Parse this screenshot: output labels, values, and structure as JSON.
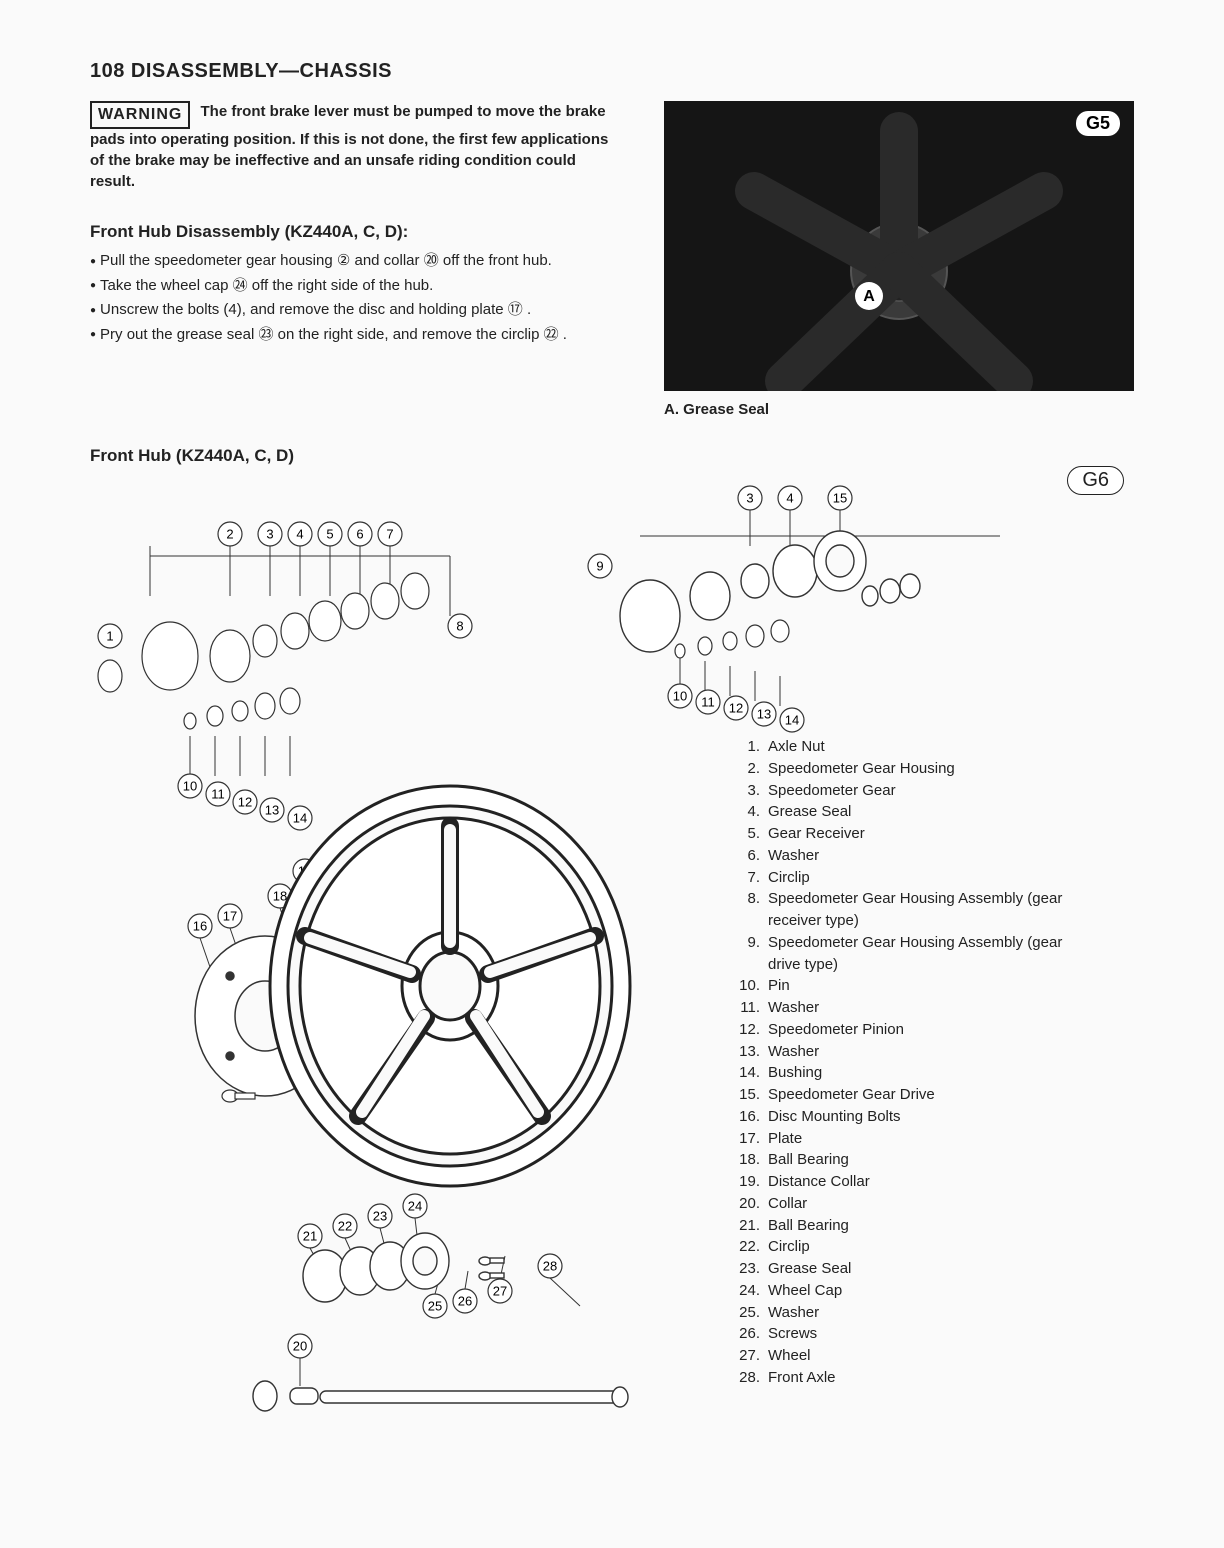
{
  "page_header": "108  DISASSEMBLY—CHASSIS",
  "warning": {
    "label": "WARNING",
    "text": "The front brake lever must be pumped to move the brake pads into operating position.  If this is not done, the first few applications of the brake may be ineffective and an unsafe riding condition could result."
  },
  "disassembly": {
    "title": "Front Hub Disassembly (KZ440A, C, D):",
    "steps": [
      "Pull the speedometer gear housing ② and collar ⑳ off the front hub.",
      "Take the wheel cap ㉔ off the right side of the hub.",
      "Unscrew the bolts (4), and remove the disc and holding plate ⑰ .",
      "Pry out the grease seal ㉓ on the right side, and remove the circlip ㉒ ."
    ]
  },
  "photo_g5": {
    "badge": "G5",
    "marker": "A",
    "caption": "A. Grease Seal"
  },
  "diagram": {
    "title": "Front Hub (KZ440A, C, D)",
    "g6_badge": "G6",
    "callouts_upper": [
      1,
      2,
      3,
      4,
      5,
      6,
      7,
      8,
      9,
      10,
      11,
      12,
      13,
      14,
      15,
      16,
      17,
      18,
      19
    ],
    "callouts_lower": [
      20,
      21,
      22,
      23,
      24,
      25,
      26,
      27,
      28
    ]
  },
  "parts_list": [
    {
      "n": "1.",
      "t": "Axle Nut"
    },
    {
      "n": "2.",
      "t": "Speedometer Gear Housing"
    },
    {
      "n": "3.",
      "t": "Speedometer Gear"
    },
    {
      "n": "4.",
      "t": "Grease Seal"
    },
    {
      "n": "5.",
      "t": "Gear Receiver"
    },
    {
      "n": "6.",
      "t": "Washer"
    },
    {
      "n": "7.",
      "t": "Circlip"
    },
    {
      "n": "8.",
      "t": "Speedometer Gear Housing Assembly (gear receiver type)"
    },
    {
      "n": "9.",
      "t": "Speedometer Gear Housing Assembly (gear drive type)"
    },
    {
      "n": "10.",
      "t": "Pin"
    },
    {
      "n": "11.",
      "t": "Washer"
    },
    {
      "n": "12.",
      "t": "Speedometer Pinion"
    },
    {
      "n": "13.",
      "t": "Washer"
    },
    {
      "n": "14.",
      "t": "Bushing"
    },
    {
      "n": "15.",
      "t": "Speedometer Gear Drive"
    },
    {
      "n": "16.",
      "t": "Disc Mounting Bolts"
    },
    {
      "n": "17.",
      "t": "Plate"
    },
    {
      "n": "18.",
      "t": "Ball Bearing"
    },
    {
      "n": "19.",
      "t": "Distance Collar"
    },
    {
      "n": "20.",
      "t": "Collar"
    },
    {
      "n": "21.",
      "t": "Ball Bearing"
    },
    {
      "n": "22.",
      "t": "Circlip"
    },
    {
      "n": "23.",
      "t": "Grease Seal"
    },
    {
      "n": "24.",
      "t": "Wheel Cap"
    },
    {
      "n": "25.",
      "t": "Washer"
    },
    {
      "n": "26.",
      "t": "Screws"
    },
    {
      "n": "27.",
      "t": "Wheel"
    },
    {
      "n": "28.",
      "t": "Front Axle"
    }
  ]
}
